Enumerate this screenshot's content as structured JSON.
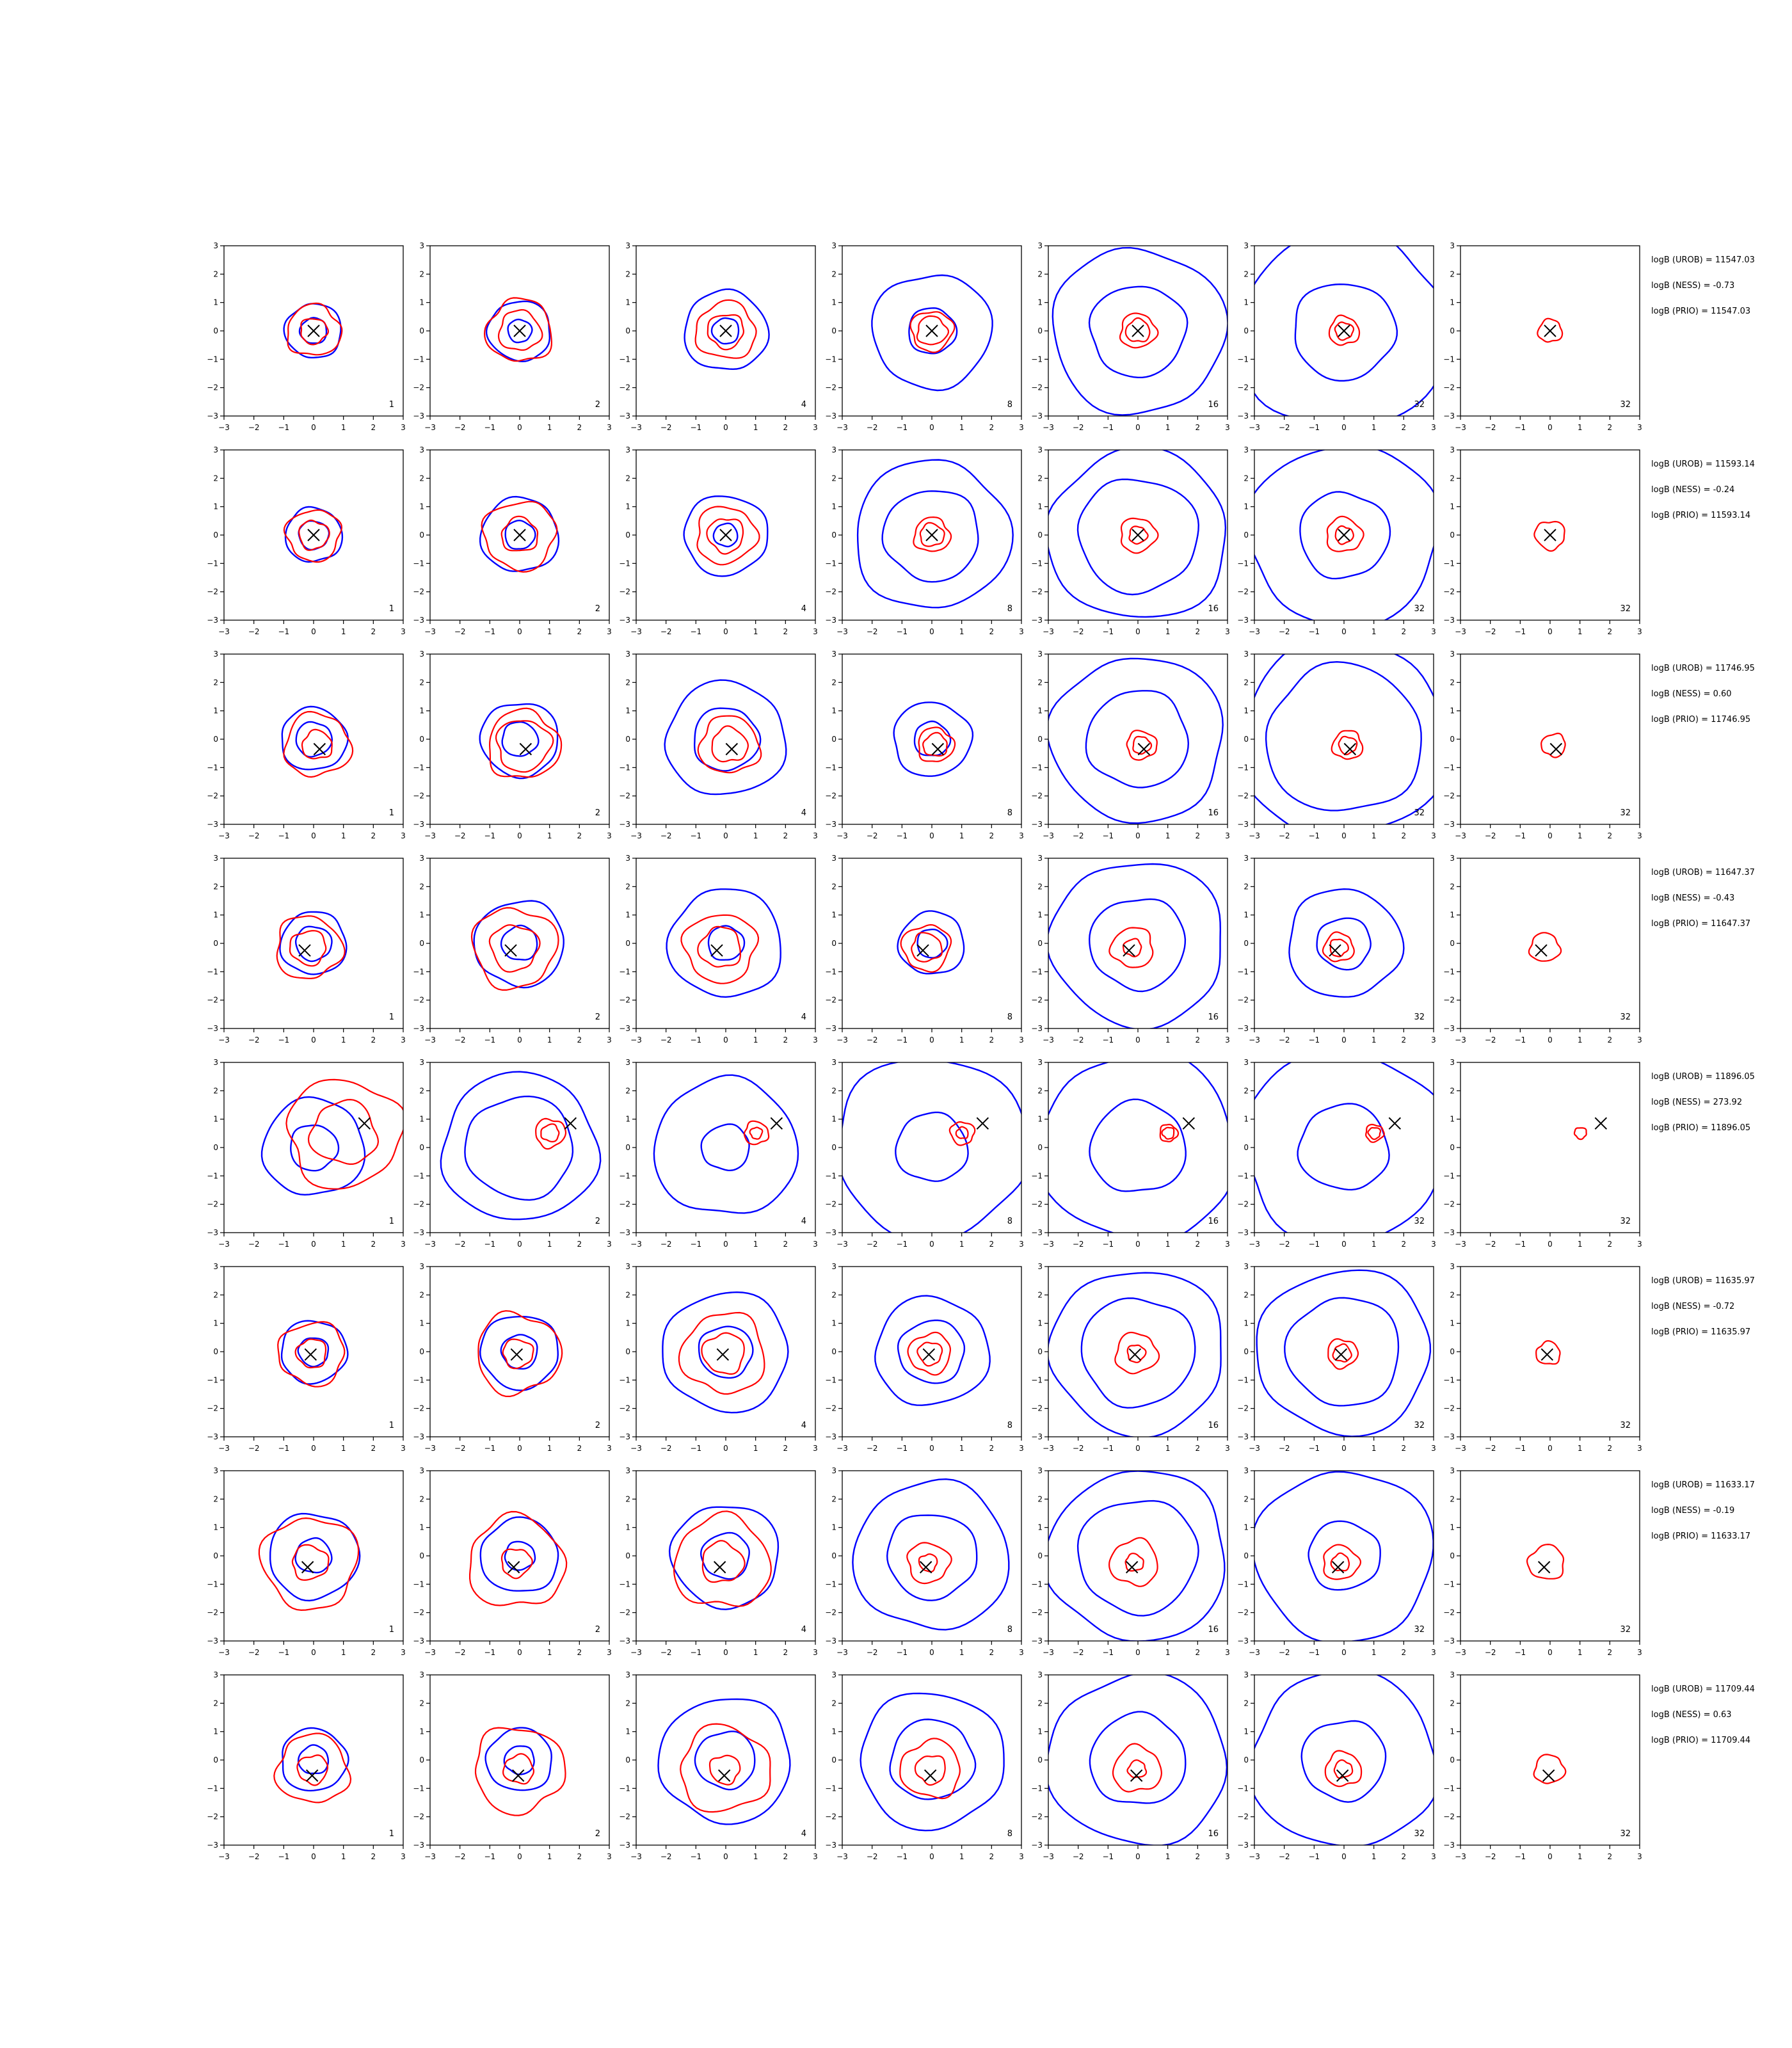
{
  "colors": {
    "background": "#ffffff",
    "axes": "#000000",
    "contour_blue": "#0000ff",
    "contour_red": "#ff0000",
    "marker": "#000000"
  },
  "chart_data": {
    "type": "contour",
    "layout": {
      "rows": 8,
      "cols": 7
    },
    "xlim": [
      -3,
      3
    ],
    "ylim": [
      -3,
      3
    ],
    "xticks": [
      -3,
      -2,
      -1,
      0,
      1,
      2,
      3
    ],
    "yticks": [
      -3,
      -2,
      -1,
      0,
      1,
      2,
      3
    ],
    "panel_labels": [
      "1",
      "2",
      "4",
      "8",
      "16",
      "32",
      "32"
    ],
    "rows": [
      {
        "marker": [
          0,
          0
        ],
        "blue_radii": [
          [
            0.95,
            0.45
          ],
          [
            1.05,
            0.4
          ],
          [
            1.4,
            0.45
          ],
          [
            2.0,
            0.8
          ],
          [
            2.9,
            1.6
          ],
          [
            3.5,
            1.7
          ],
          []
        ],
        "red_radii": [
          [
            0.9,
            0.45
          ],
          [
            1.1,
            0.7
          ],
          [
            1.0,
            0.6
          ],
          [
            0.7,
            0.5
          ],
          [
            0.6,
            0.4
          ],
          [
            0.5,
            0.3
          ],
          [
            0.4
          ]
        ],
        "evidence": [
          "logB (UROB) = 11547.03",
          "logB (NESS) = -0.73",
          "logB (PRIO) = 11547.03"
        ]
      },
      {
        "marker": [
          0,
          0
        ],
        "blue_radii": [
          [
            0.95,
            0.5
          ],
          [
            1.3,
            0.5
          ],
          [
            1.4,
            0.4
          ],
          [
            2.6,
            1.6
          ],
          [
            3.0,
            2.0
          ],
          [
            3.2,
            1.5
          ],
          []
        ],
        "red_radii": [
          [
            0.9,
            0.5
          ],
          [
            1.2,
            0.6
          ],
          [
            1.0,
            0.6
          ],
          [
            0.6,
            0.4
          ],
          [
            0.6,
            0.3
          ],
          [
            0.6,
            0.3
          ],
          [
            0.5
          ]
        ],
        "evidence": [
          "logB (UROB) = 11593.14",
          "logB (NESS) = -0.24",
          "logB (PRIO) = 11593.14"
        ]
      },
      {
        "marker": [
          0.2,
          -0.35
        ],
        "blue_radii": [
          [
            1.1,
            0.6
          ],
          [
            1.3,
            0.6
          ],
          [
            2.0,
            1.1
          ],
          [
            1.3,
            0.6
          ],
          [
            2.9,
            1.7
          ],
          [
            3.5,
            2.6
          ],
          []
        ],
        "red_radii": [
          [
            1.1,
            0.5
          ],
          [
            1.2,
            0.9
          ],
          [
            1.0,
            0.6
          ],
          [
            0.6,
            0.4
          ],
          [
            0.5,
            0.3
          ],
          [
            0.5,
            0.3
          ],
          [
            0.4
          ]
        ],
        "evidence": [
          "logB (UROB) = 11746.95",
          "logB (NESS) = 0.60",
          "logB (PRIO) = 11746.95"
        ]
      },
      {
        "marker": [
          -0.3,
          -0.25
        ],
        "blue_radii": [
          [
            1.1,
            0.6
          ],
          [
            1.5,
            0.6
          ],
          [
            1.9,
            0.6
          ],
          [
            1.1,
            0.5
          ],
          [
            2.9,
            1.6
          ],
          [
            1.9,
            0.9
          ],
          []
        ],
        "red_radii": [
          [
            1.1,
            0.6
          ],
          [
            1.4,
            0.8
          ],
          [
            1.2,
            0.7
          ],
          [
            0.8,
            0.5
          ],
          [
            0.7,
            0.3
          ],
          [
            0.5,
            0.3
          ],
          [
            0.5
          ]
        ],
        "evidence": [
          "logB (UROB) = 11647.37",
          "logB (NESS) = -0.43",
          "logB (PRIO) = 11647.37"
        ]
      },
      {
        "marker": [
          1.7,
          0.85
        ],
        "blue_radii": [
          [
            1.7,
            0.8
          ],
          [
            2.6,
            1.8
          ],
          [
            2.4,
            0.8
          ],
          [
            3.2,
            1.2
          ],
          [
            3.3,
            1.6
          ],
          [
            3.4,
            1.5
          ],
          []
        ],
        "red_radii": [
          [
            1.9,
            1.1
          ],
          [
            0.5,
            0.3
          ],
          [
            0.4,
            0.2
          ],
          [
            0.4,
            0.2
          ],
          [
            0.3,
            0.2
          ],
          [
            0.3,
            0.2
          ],
          [
            0.2
          ]
        ],
        "evidence": [
          "logB (UROB) = 11896.05",
          "logB (NESS) = 273.92",
          "logB (PRIO) = 11896.05"
        ]
      },
      {
        "marker": [
          -0.1,
          -0.1
        ],
        "blue_radii": [
          [
            1.1,
            0.5
          ],
          [
            1.3,
            0.6
          ],
          [
            2.1,
            0.9
          ],
          [
            1.9,
            1.1
          ],
          [
            2.9,
            1.9
          ],
          [
            2.9,
            1.9
          ],
          []
        ],
        "red_radii": [
          [
            1.1,
            0.5
          ],
          [
            1.4,
            0.5
          ],
          [
            1.4,
            0.7
          ],
          [
            0.7,
            0.4
          ],
          [
            0.7,
            0.3
          ],
          [
            0.5,
            0.3
          ],
          [
            0.4
          ]
        ],
        "evidence": [
          "logB (UROB) = 11635.97",
          "logB (NESS) = -0.72",
          "logB (PRIO) = 11635.97"
        ]
      },
      {
        "marker": [
          -0.2,
          -0.4
        ],
        "blue_radii": [
          [
            1.5,
            0.6
          ],
          [
            1.3,
            0.5
          ],
          [
            1.8,
            0.8
          ],
          [
            2.6,
            1.5
          ],
          [
            3.0,
            2.0
          ],
          [
            3.0,
            1.2
          ],
          []
        ],
        "red_radii": [
          [
            1.6,
            0.6
          ],
          [
            1.6,
            0.5
          ],
          [
            1.6,
            0.7
          ],
          [
            0.7,
            0.3
          ],
          [
            0.8,
            0.3
          ],
          [
            0.6,
            0.3
          ],
          [
            0.6
          ]
        ],
        "evidence": [
          "logB (UROB) = 11633.17",
          "logB (NESS) = -0.19",
          "logB (PRIO) = 11633.17"
        ]
      },
      {
        "marker": [
          -0.05,
          -0.55
        ],
        "blue_radii": [
          [
            1.1,
            0.5
          ],
          [
            1.1,
            0.5
          ],
          [
            2.2,
            1.0
          ],
          [
            2.4,
            1.4
          ],
          [
            3.0,
            1.6
          ],
          [
            3.1,
            1.4
          ],
          []
        ],
        "red_radii": [
          [
            1.2,
            0.5
          ],
          [
            1.5,
            0.5
          ],
          [
            1.5,
            0.5
          ],
          [
            1.0,
            0.5
          ],
          [
            0.8,
            0.3
          ],
          [
            0.6,
            0.3
          ],
          [
            0.5
          ]
        ],
        "evidence": [
          "logB (UROB) = 11709.44",
          "logB (NESS) = 0.63",
          "logB (PRIO) = 11709.44"
        ]
      }
    ]
  }
}
